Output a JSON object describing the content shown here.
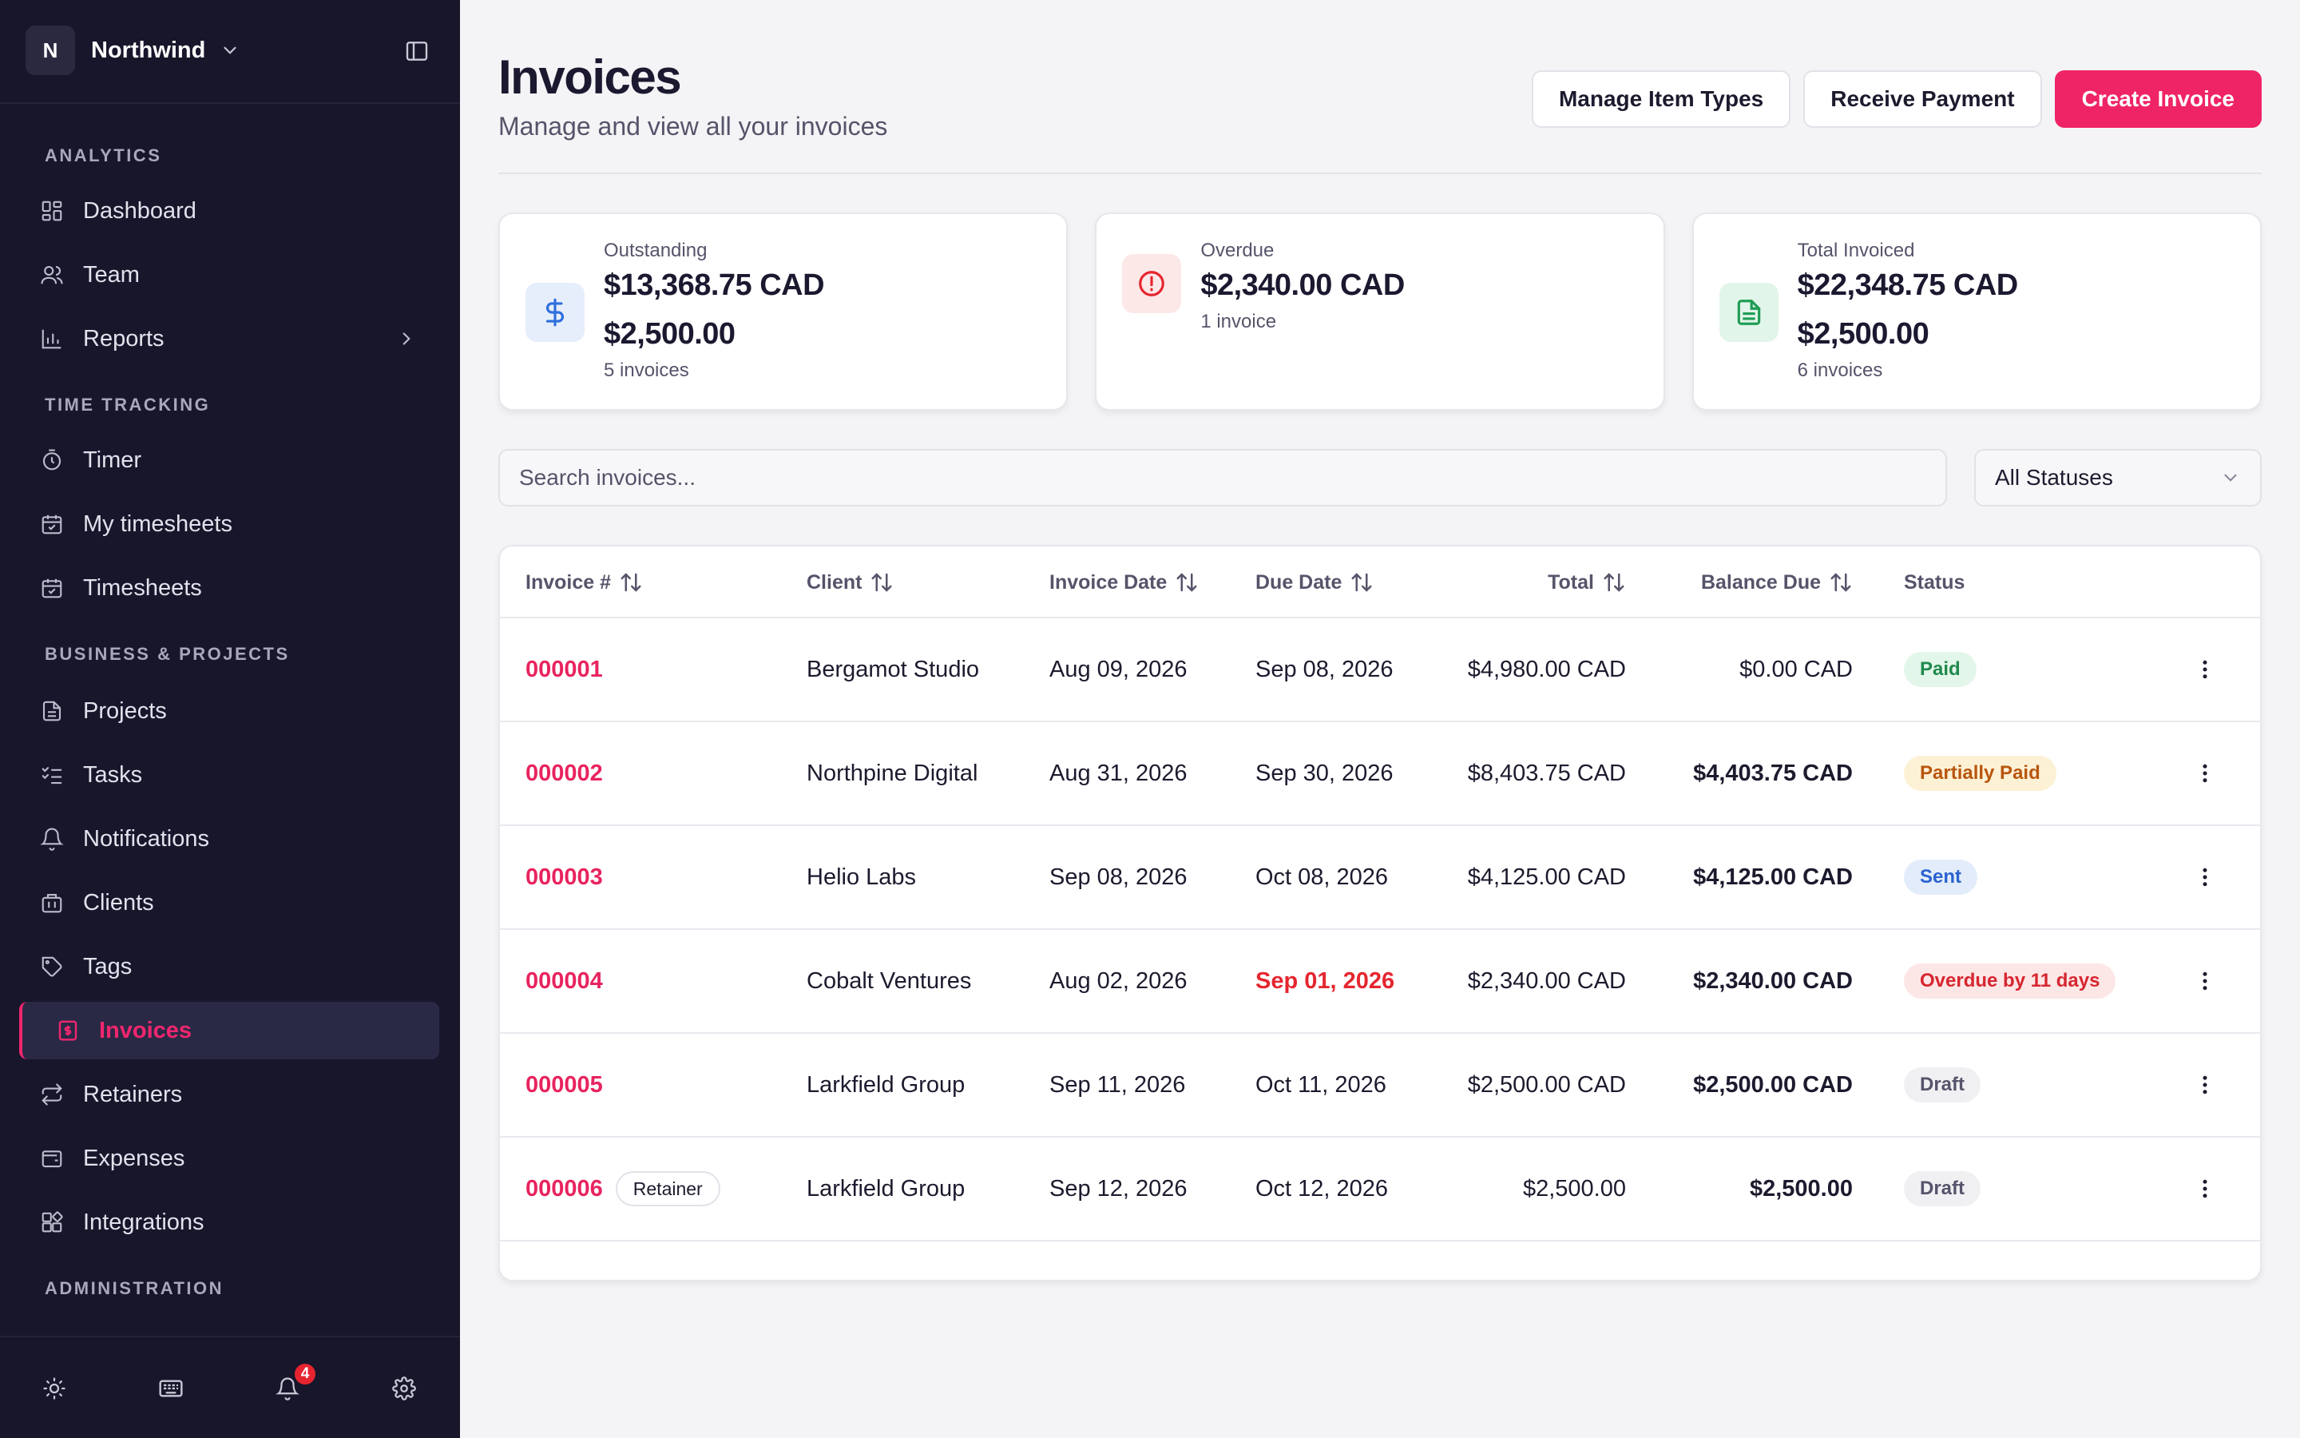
{
  "workspace": {
    "initial": "N",
    "name": "Northwind"
  },
  "sidebar": {
    "sections": [
      {
        "title": "ANALYTICS"
      },
      {
        "title": "TIME TRACKING"
      },
      {
        "title": "BUSINESS & PROJECTS"
      },
      {
        "title": "ADMINISTRATION"
      }
    ],
    "items": [
      {
        "label": "Dashboard",
        "icon": "dashboard-icon"
      },
      {
        "label": "Team",
        "icon": "team-icon"
      },
      {
        "label": "Reports",
        "icon": "reports-icon"
      },
      {
        "label": "Timer",
        "icon": "timer-icon"
      },
      {
        "label": "My timesheets",
        "icon": "calendar-check-icon"
      },
      {
        "label": "Timesheets",
        "icon": "calendar-check-icon"
      },
      {
        "label": "Projects",
        "icon": "document-icon"
      },
      {
        "label": "Tasks",
        "icon": "checklist-icon"
      },
      {
        "label": "Notifications",
        "icon": "bell-icon"
      },
      {
        "label": "Clients",
        "icon": "building-icon"
      },
      {
        "label": "Tags",
        "icon": "tag-icon"
      },
      {
        "label": "Invoices",
        "icon": "invoice-icon",
        "active": true
      },
      {
        "label": "Retainers",
        "icon": "repeat-icon"
      },
      {
        "label": "Expenses",
        "icon": "wallet-icon"
      },
      {
        "label": "Integrations",
        "icon": "integrations-icon"
      }
    ],
    "notification_count": "4"
  },
  "page": {
    "title": "Invoices",
    "subtitle": "Manage and view all your invoices",
    "buttons": {
      "manage_item_types": "Manage Item Types",
      "receive_payment": "Receive Payment",
      "create_invoice": "Create Invoice"
    }
  },
  "summary_cards": [
    {
      "label": "Outstanding",
      "amount": "$13,368.75 CAD",
      "amount2": "$2,500.00",
      "sub": "5 invoices",
      "icon": "dollar-icon",
      "accent": "#2f6fdc"
    },
    {
      "label": "Overdue",
      "amount": "$2,340.00 CAD",
      "sub": "1 invoice",
      "icon": "alert-circle-icon",
      "accent": "#e5262f"
    },
    {
      "label": "Total Invoiced",
      "amount": "$22,348.75 CAD",
      "amount2": "$2,500.00",
      "sub": "6 invoices",
      "icon": "file-text-icon",
      "accent": "#1f9d55"
    }
  ],
  "filters": {
    "search_placeholder": "Search invoices...",
    "status_selected": "All Statuses"
  },
  "table": {
    "headers": {
      "invoice": "Invoice #",
      "client": "Client",
      "invoice_date": "Invoice Date",
      "due_date": "Due Date",
      "total": "Total",
      "balance_due": "Balance Due",
      "status": "Status"
    },
    "rows": [
      {
        "number": "000001",
        "client": "Bergamot Studio",
        "invoice_date": "Aug 09, 2026",
        "due_date": "Sep 08, 2026",
        "total": "$4,980.00 CAD",
        "balance": "$0.00 CAD",
        "status": "Paid"
      },
      {
        "number": "000002",
        "client": "Northpine Digital",
        "invoice_date": "Aug 31, 2026",
        "due_date": "Sep 30, 2026",
        "total": "$8,403.75 CAD",
        "balance": "$4,403.75 CAD",
        "status": "Partially Paid"
      },
      {
        "number": "000003",
        "client": "Helio Labs",
        "invoice_date": "Sep 08, 2026",
        "due_date": "Oct 08, 2026",
        "total": "$4,125.00 CAD",
        "balance": "$4,125.00 CAD",
        "status": "Sent"
      },
      {
        "number": "000004",
        "client": "Cobalt Ventures",
        "invoice_date": "Aug 02, 2026",
        "due_date": "Sep 01, 2026",
        "total": "$2,340.00 CAD",
        "balance": "$2,340.00 CAD",
        "status": "Overdue by 11 days"
      },
      {
        "number": "000005",
        "client": "Larkfield Group",
        "invoice_date": "Sep 11, 2026",
        "due_date": "Oct 11, 2026",
        "total": "$2,500.00 CAD",
        "balance": "$2,500.00 CAD",
        "status": "Draft"
      },
      {
        "number": "000006",
        "tag": "Retainer",
        "client": "Larkfield Group",
        "invoice_date": "Sep 12, 2026",
        "due_date": "Oct 12, 2026",
        "total": "$2,500.00",
        "balance": "$2,500.00",
        "status": "Draft"
      }
    ],
    "status_colors": {
      "Paid": {
        "bg": "#e3f6ea",
        "fg": "#1f8a4c"
      },
      "Partially Paid": {
        "bg": "#fdf1d5",
        "fg": "#b8560e"
      },
      "Sent": {
        "bg": "#e3ecfb",
        "fg": "#2a63cf"
      },
      "Overdue": {
        "bg": "#fde6e6",
        "fg": "#d62630"
      },
      "Draft": {
        "bg": "#f0f0f3",
        "fg": "#55546a"
      }
    }
  },
  "colors": {
    "brand": "#ef2466",
    "sidebar_bg": "#17162b",
    "page_bg": "#f4f4f6"
  }
}
